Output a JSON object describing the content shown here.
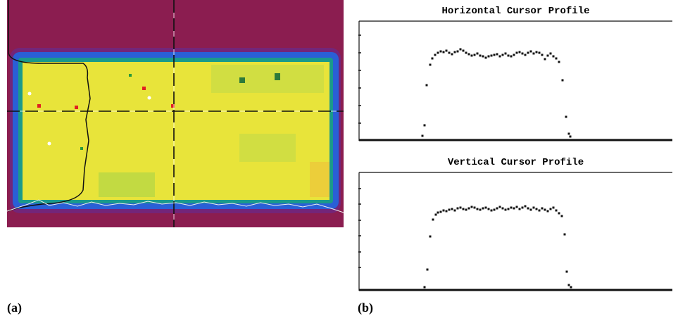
{
  "figure": {
    "panel_a": {
      "label": "(a)"
    },
    "panel_b": {
      "label": "(b)"
    }
  },
  "chart_data": [
    {
      "type": "scatter",
      "title": "Horizontal Cursor Profile",
      "color": "#111111",
      "x": [
        90,
        93,
        96,
        101,
        104,
        108,
        112,
        116,
        120,
        124,
        128,
        132,
        136,
        140,
        144,
        148,
        152,
        156,
        160,
        164,
        168,
        172,
        176,
        180,
        184,
        188,
        192,
        196,
        200,
        204,
        208,
        212,
        216,
        220,
        224,
        228,
        232,
        236,
        240,
        244,
        248,
        252,
        256,
        260,
        264,
        268,
        272,
        276,
        280,
        284,
        289,
        294,
        298,
        300
      ],
      "values": [
        7,
        22,
        79,
        108,
        117,
        122,
        125,
        127,
        126,
        128,
        125,
        123,
        126,
        127,
        130,
        128,
        125,
        123,
        121,
        122,
        124,
        121,
        120,
        118,
        120,
        121,
        122,
        123,
        120,
        122,
        124,
        121,
        120,
        122,
        125,
        126,
        124,
        122,
        125,
        127,
        124,
        126,
        125,
        122,
        116,
        121,
        124,
        120,
        117,
        112,
        86,
        34,
        10,
        6
      ],
      "xlim": [
        0,
        445
      ],
      "ylim": [
        0,
        170
      ],
      "yticks": [
        25,
        50,
        75,
        100,
        125,
        150
      ]
    },
    {
      "type": "scatter",
      "title": "Vertical Cursor Profile",
      "color": "#111111",
      "x": [
        93,
        97,
        101,
        105,
        109,
        112,
        116,
        120,
        124,
        128,
        132,
        136,
        140,
        144,
        148,
        152,
        156,
        160,
        164,
        168,
        172,
        176,
        180,
        184,
        188,
        192,
        196,
        200,
        204,
        208,
        212,
        216,
        220,
        224,
        228,
        232,
        236,
        240,
        244,
        248,
        252,
        256,
        260,
        264,
        268,
        272,
        276,
        280,
        284,
        288,
        292,
        295,
        298,
        301
      ],
      "values": [
        5,
        30,
        77,
        101,
        108,
        111,
        112,
        114,
        113,
        115,
        116,
        114,
        117,
        118,
        116,
        115,
        117,
        119,
        118,
        116,
        115,
        117,
        118,
        116,
        114,
        115,
        117,
        119,
        117,
        115,
        116,
        118,
        117,
        119,
        116,
        118,
        120,
        117,
        115,
        118,
        116,
        114,
        117,
        115,
        113,
        116,
        118,
        114,
        110,
        106,
        80,
        27,
        8,
        5
      ],
      "xlim": [
        0,
        445
      ],
      "ylim": [
        0,
        168
      ],
      "yticks": [
        33,
        55,
        78,
        100,
        123,
        145
      ]
    }
  ]
}
